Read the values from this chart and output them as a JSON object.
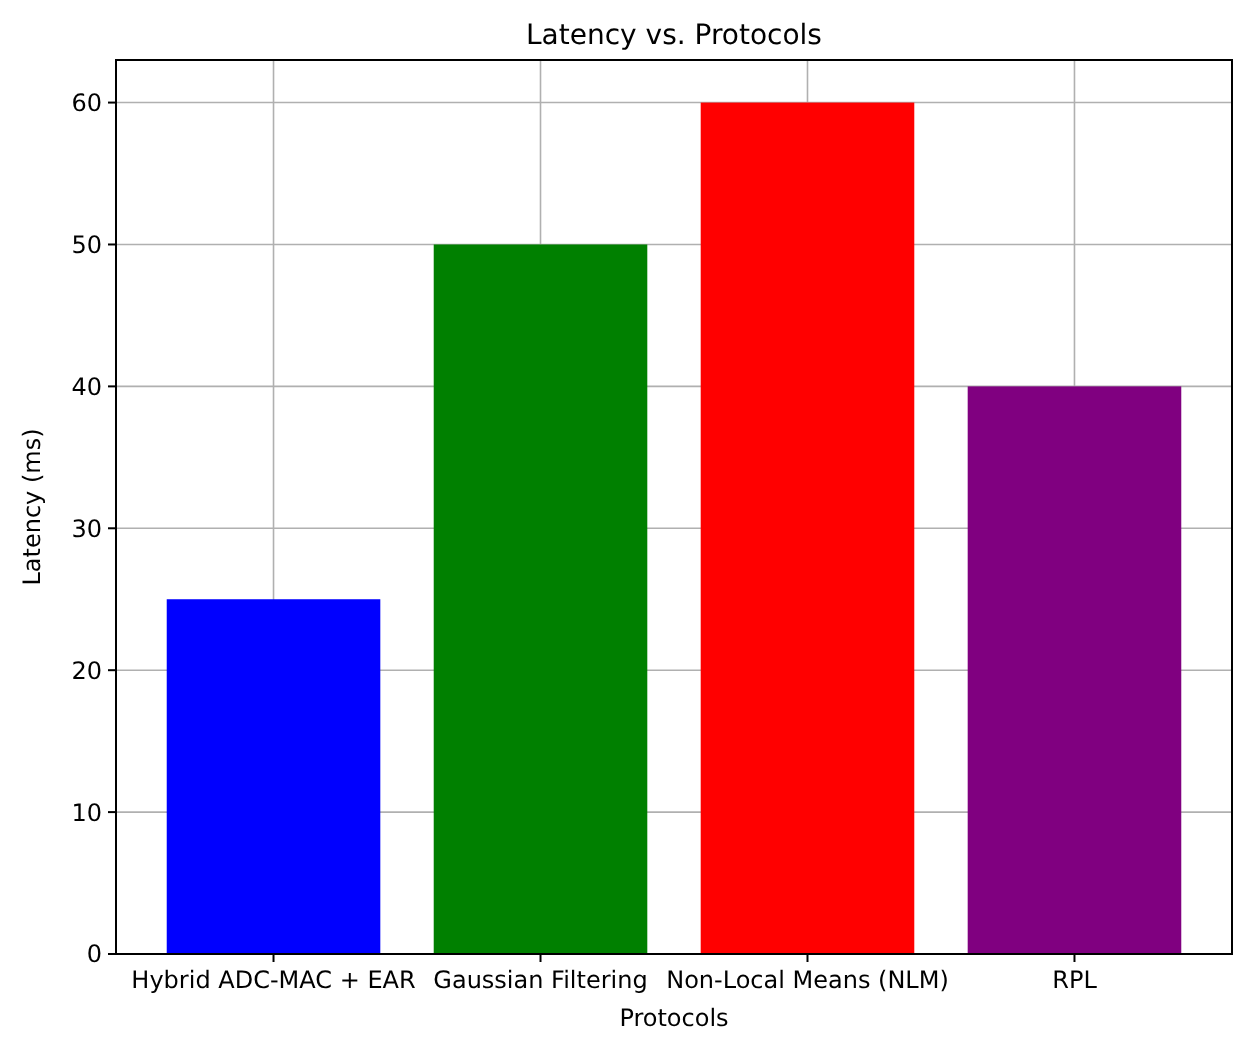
{
  "chart_data": {
    "type": "bar",
    "title": "Latency vs. Protocols",
    "xlabel": "Protocols",
    "ylabel": "Latency (ms)",
    "categories": [
      "Hybrid ADC-MAC + EAR",
      "Gaussian Filtering",
      "Non-Local Means (NLM)",
      "RPL"
    ],
    "values": [
      25,
      50,
      60,
      40
    ],
    "colors": [
      "#0000ff",
      "#008000",
      "#ff0000",
      "#800080"
    ],
    "ylim": [
      0,
      63
    ],
    "yticks": [
      0,
      10,
      20,
      30,
      40,
      50,
      60
    ],
    "grid": true
  }
}
